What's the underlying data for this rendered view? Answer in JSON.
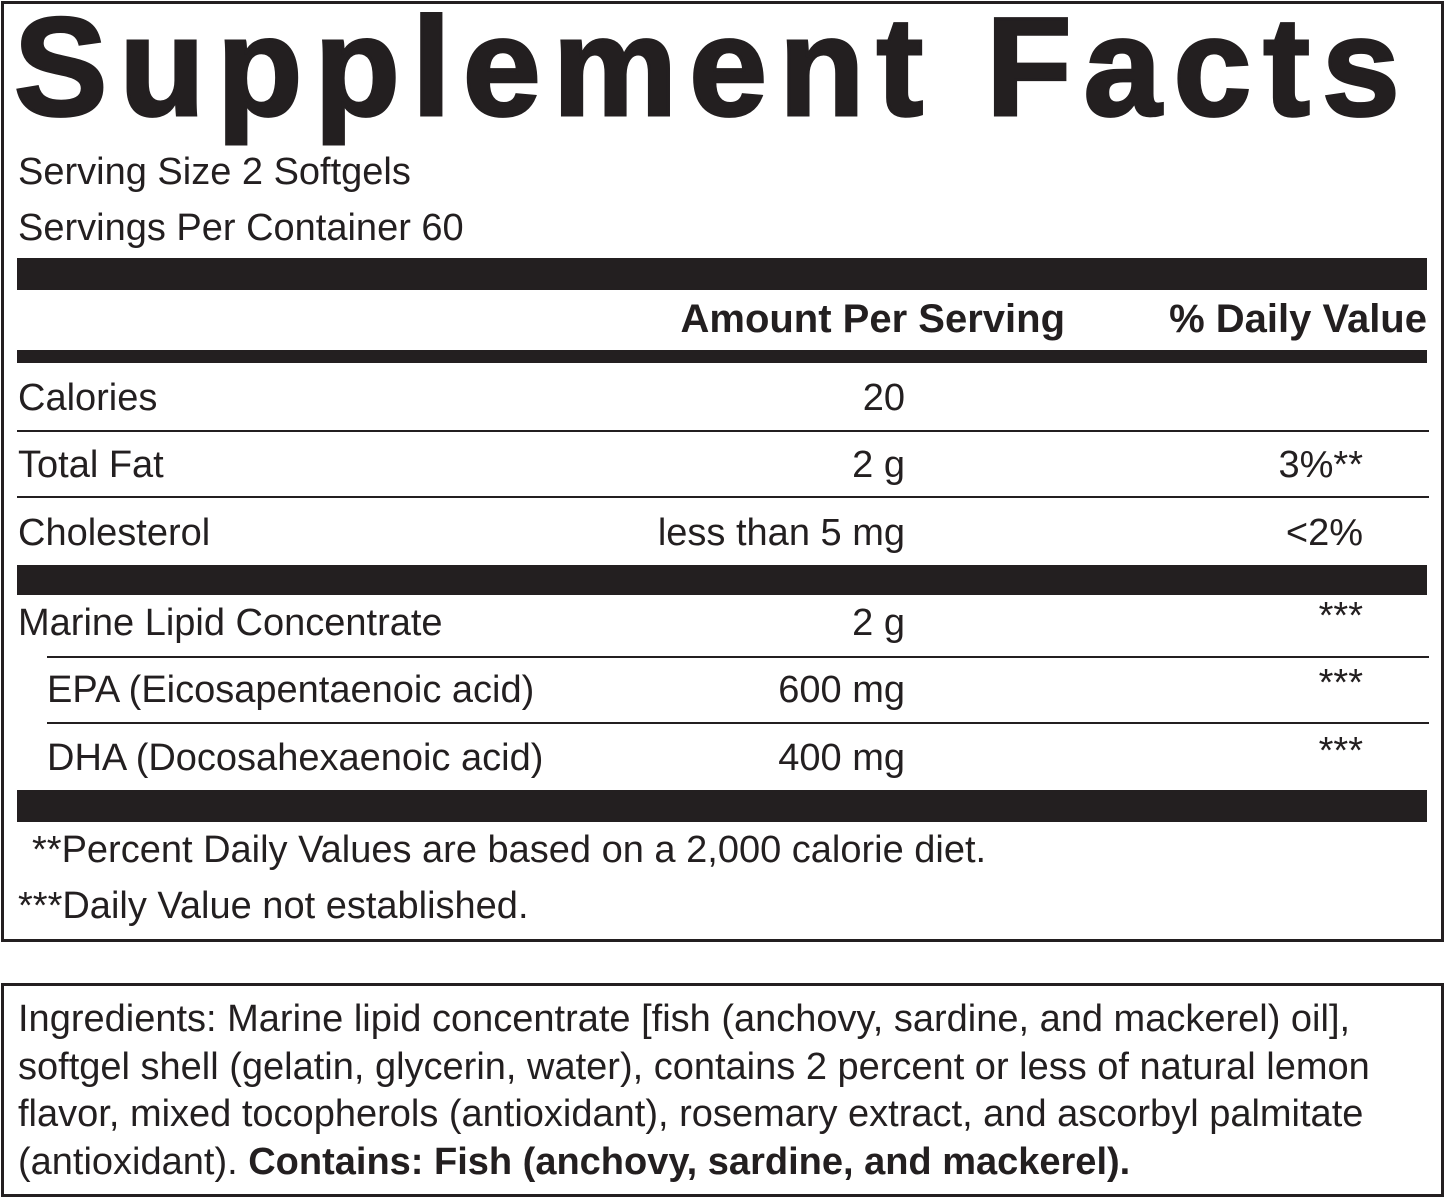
{
  "title": "Supplement Facts",
  "serving_size": "Serving Size 2 Softgels",
  "servings_per_container": "Servings Per Container 60",
  "columns": {
    "amount": "Amount Per Serving",
    "daily_value": "% Daily Value"
  },
  "rows": [
    {
      "name": "Calories",
      "amount": "20",
      "dv": ""
    },
    {
      "name": "Total Fat",
      "amount": "2 g",
      "dv": "3%**"
    },
    {
      "name": "Cholesterol",
      "amount": "less than 5 mg",
      "dv": "<2%"
    },
    {
      "name": "Marine Lipid Concentrate",
      "amount": "2 g",
      "dv": "***"
    },
    {
      "name": "EPA (Eicosapentaenoic acid)",
      "amount": "600 mg",
      "dv": "***"
    },
    {
      "name": "DHA (Docosahexaenoic acid)",
      "amount": "400 mg",
      "dv": "***"
    }
  ],
  "footnotes": [
    "**Percent Daily Values are based on a 2,000 calorie diet.",
    "***Daily Value not established."
  ],
  "ingredients": {
    "text": "Ingredients: Marine lipid concentrate [fish (anchovy, sardine, and mackerel) oil], softgel shell (gelatin, glycerin, water), contains 2 percent or less of natural lemon flavor, mixed tocopherols (antioxidant), rosemary extract, and ascorbyl palmitate (antioxidant). ",
    "allergen": "Contains: Fish (anchovy, sardine, and mackerel)."
  }
}
